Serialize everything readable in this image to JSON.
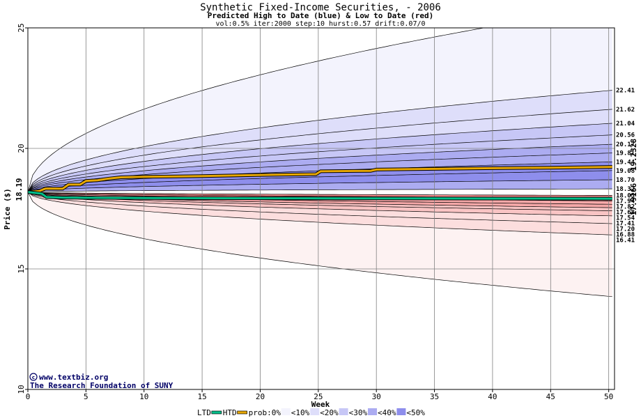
{
  "header": {
    "title": "Synthetic Fixed-Income Securities,  - 2006",
    "subtitle": "Predicted High to Date (blue) &  Low to Date (red)",
    "params": "vol:0.5% iter:2000 step:10 hurst:0.57 drift:0.07/0"
  },
  "credits": {
    "site": "www.textbiz.org",
    "org": "The Research Foundation of SUNY"
  },
  "legend": {
    "ltd": "LTD",
    "htd": "HTD",
    "prob": "prob:0%",
    "bins": [
      "<10%",
      "<20%",
      "<30%",
      "<40%",
      "<50%"
    ]
  },
  "colors": {
    "ltd_line": "#00c08a",
    "htd_line": "#e8a800",
    "blue_bands": [
      "#f3f3fd",
      "#dedefa",
      "#c7c7f6",
      "#acacf1",
      "#8e8eec"
    ],
    "red_bands": [
      "#fdf2f2",
      "#fcdede",
      "#f9c4c4",
      "#f5a8a8",
      "#f08a8a"
    ],
    "grid": "#808080",
    "credit": "#000066"
  },
  "chart_data": {
    "type": "area",
    "xlabel": "Week",
    "ylabel": "Price ($)",
    "xlim": [
      0,
      50.5
    ],
    "ylim": [
      10,
      25
    ],
    "x_ticks": [
      0,
      5,
      10,
      15,
      20,
      25,
      30,
      35,
      40,
      45,
      50
    ],
    "y_ticks": [
      10,
      15,
      20,
      25
    ],
    "start_value": 18.19,
    "start_label": "18.19",
    "final_htd": "19.2328",
    "final_ltd": "17.9166",
    "htd_upper_bands": [
      {
        "end": 25.9,
        "label": ""
      },
      {
        "end": 22.41,
        "label": "22.41"
      },
      {
        "end": 21.62,
        "label": "21.62"
      },
      {
        "end": 21.04,
        "label": "21.04"
      },
      {
        "end": 20.56,
        "label": "20.56"
      },
      {
        "end": 20.17,
        "label": "20.17"
      },
      {
        "end": 19.81,
        "label": "19.81"
      },
      {
        "end": 19.44,
        "label": "19.44"
      },
      {
        "end": 19.08,
        "label": "19.08"
      },
      {
        "end": 18.7,
        "label": "18.70"
      },
      {
        "end": 18.32,
        "label": "18.32"
      }
    ],
    "ltd_lower_bands": [
      {
        "end": 18.05,
        "label": "18.05"
      },
      {
        "end": 17.94,
        "label": "17.94"
      },
      {
        "end": 17.82,
        "label": "17.82"
      },
      {
        "end": 17.68,
        "label": "17.68"
      },
      {
        "end": 17.54,
        "label": "17.54"
      },
      {
        "end": 17.41,
        "label": "17.41"
      },
      {
        "end": 17.2,
        "label": "17.20"
      },
      {
        "end": 16.88,
        "label": "16.88"
      },
      {
        "end": 16.41,
        "label": "16.41"
      },
      {
        "end": 13.85,
        "label": ""
      }
    ],
    "htd_median": {
      "x": [
        0,
        1,
        1.5,
        3,
        3.5,
        4.5,
        5,
        6,
        7,
        8,
        10,
        15,
        20,
        24.8,
        25.2,
        29.5,
        30,
        35,
        40,
        45,
        50.3
      ],
      "y": [
        18.19,
        18.23,
        18.33,
        18.33,
        18.5,
        18.5,
        18.65,
        18.68,
        18.75,
        18.8,
        18.82,
        18.85,
        18.9,
        18.93,
        19.05,
        19.07,
        19.12,
        19.15,
        19.18,
        19.2,
        19.23
      ]
    },
    "ltd_median": {
      "x": [
        0,
        1.2,
        1.6,
        3,
        5,
        10,
        20,
        30,
        40,
        50.3
      ],
      "y": [
        18.19,
        18.12,
        17.98,
        17.96,
        17.95,
        17.94,
        17.93,
        17.925,
        17.92,
        17.917
      ]
    }
  }
}
